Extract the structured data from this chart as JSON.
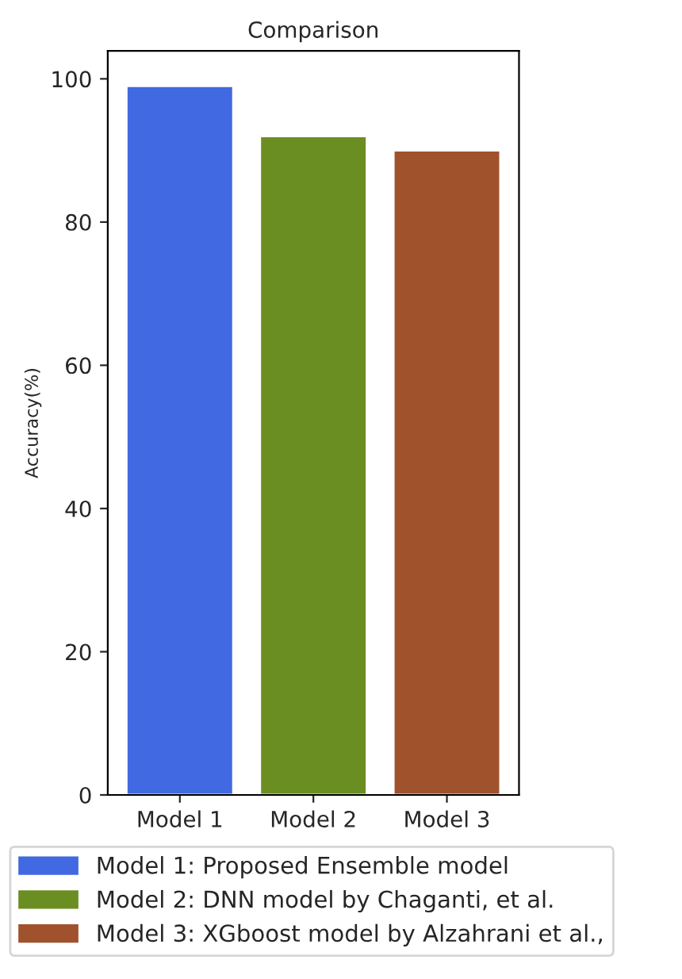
{
  "chart_data": {
    "type": "bar",
    "title": "Comparison",
    "ylabel": "Accuracy(%)",
    "categories": [
      "Model 1",
      "Model 2",
      "Model 3"
    ],
    "series": [
      {
        "name": "Model 1: Proposed Ensemble model",
        "color": "#4169e1",
        "values": [
          99,
          null,
          null
        ]
      },
      {
        "name": "Model 2: DNN model by Chaganti, et al.",
        "color": "#6b8e23",
        "values": [
          null,
          92,
          null
        ]
      },
      {
        "name": "Model 3: XGboost model by Alzahrani et al.,",
        "color": "#a0522d",
        "values": [
          null,
          null,
          90
        ]
      }
    ],
    "ylim": [
      0,
      103.9
    ],
    "yticks": [
      0,
      20,
      40,
      60,
      80,
      100
    ],
    "grid": false,
    "legend": "bottom"
  }
}
